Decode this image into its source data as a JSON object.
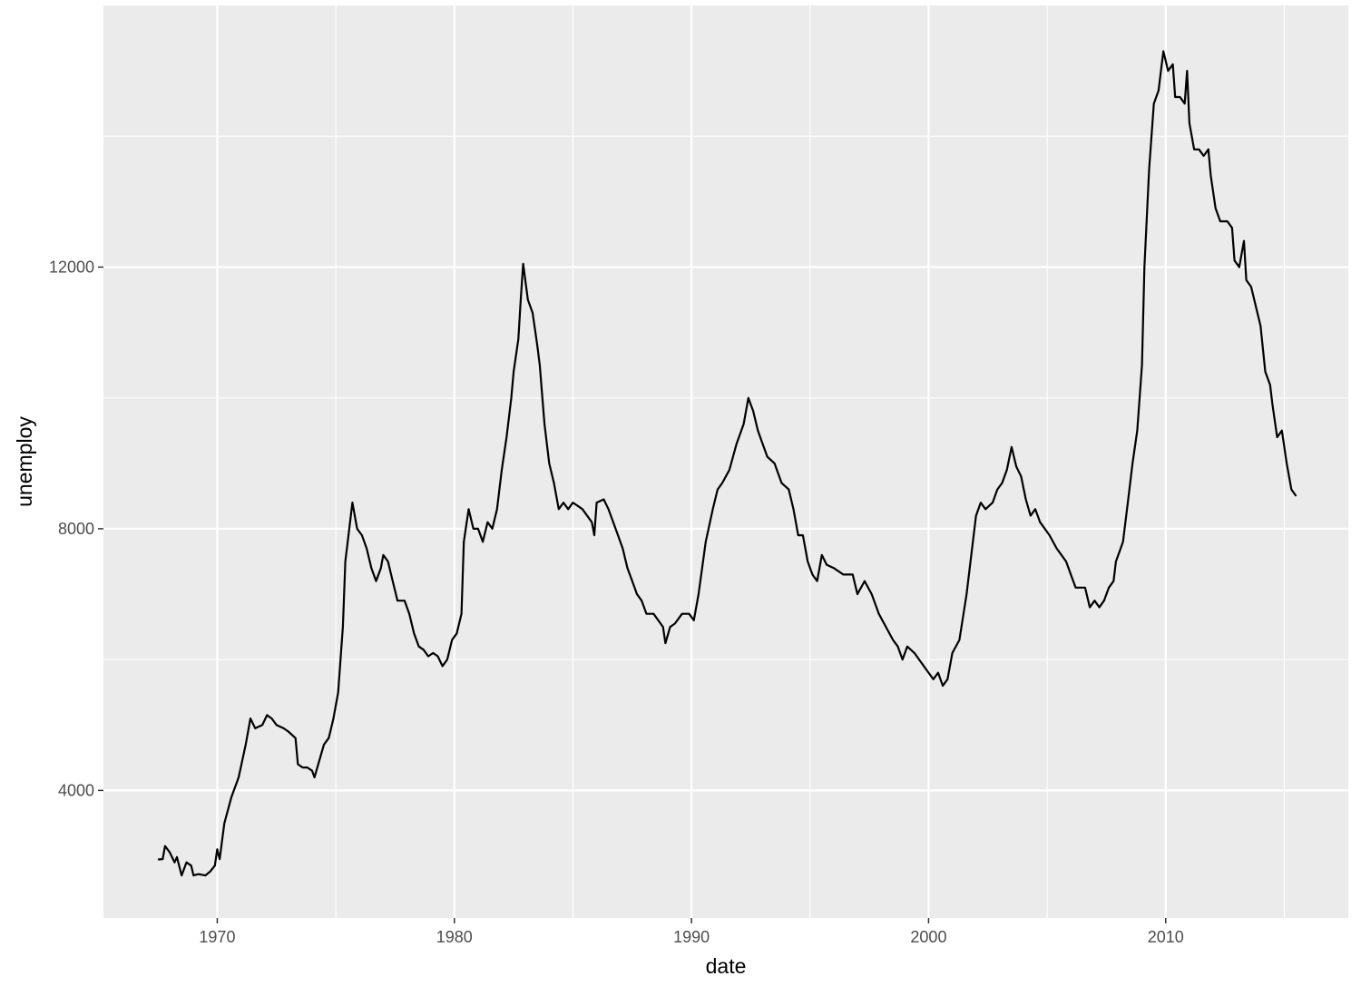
{
  "chart_data": {
    "type": "line",
    "xlabel": "date",
    "ylabel": "unemploy",
    "x_ticks": [
      "1970",
      "1980",
      "1990",
      "2000",
      "2010"
    ],
    "y_ticks": [
      "4000",
      "8000",
      "12000"
    ],
    "xlim": [
      1965.2,
      2017.7
    ],
    "ylim": [
      2050,
      16000
    ],
    "grid": true,
    "legend": "none",
    "colors": {
      "panel": "#ebebeb",
      "grid": "#ffffff",
      "line": "#000000"
    },
    "series": [
      {
        "values": [
          [
            1967.5,
            2944
          ],
          [
            1967.7,
            2950
          ],
          [
            1967.8,
            3150
          ],
          [
            1968.0,
            3050
          ],
          [
            1968.2,
            2900
          ],
          [
            1968.3,
            2980
          ],
          [
            1968.5,
            2700
          ],
          [
            1968.7,
            2900
          ],
          [
            1968.9,
            2850
          ],
          [
            1969.0,
            2700
          ],
          [
            1969.2,
            2720
          ],
          [
            1969.5,
            2700
          ],
          [
            1969.7,
            2760
          ],
          [
            1969.9,
            2850
          ],
          [
            1970.0,
            3100
          ],
          [
            1970.1,
            2950
          ],
          [
            1970.3,
            3500
          ],
          [
            1970.6,
            3900
          ],
          [
            1970.9,
            4200
          ],
          [
            1971.2,
            4700
          ],
          [
            1971.4,
            5100
          ],
          [
            1971.6,
            4950
          ],
          [
            1971.9,
            5000
          ],
          [
            1972.1,
            5150
          ],
          [
            1972.3,
            5100
          ],
          [
            1972.5,
            5000
          ],
          [
            1972.8,
            4950
          ],
          [
            1973.0,
            4900
          ],
          [
            1973.3,
            4800
          ],
          [
            1973.4,
            4400
          ],
          [
            1973.6,
            4350
          ],
          [
            1973.8,
            4350
          ],
          [
            1974.0,
            4300
          ],
          [
            1974.1,
            4200
          ],
          [
            1974.3,
            4450
          ],
          [
            1974.5,
            4700
          ],
          [
            1974.7,
            4800
          ],
          [
            1974.9,
            5100
          ],
          [
            1975.1,
            5500
          ],
          [
            1975.3,
            6500
          ],
          [
            1975.4,
            7500
          ],
          [
            1975.6,
            8100
          ],
          [
            1975.7,
            8400
          ],
          [
            1975.9,
            8000
          ],
          [
            1976.1,
            7900
          ],
          [
            1976.3,
            7700
          ],
          [
            1976.5,
            7400
          ],
          [
            1976.7,
            7200
          ],
          [
            1976.9,
            7400
          ],
          [
            1977.0,
            7600
          ],
          [
            1977.2,
            7500
          ],
          [
            1977.4,
            7200
          ],
          [
            1977.6,
            6900
          ],
          [
            1977.9,
            6900
          ],
          [
            1978.1,
            6700
          ],
          [
            1978.3,
            6400
          ],
          [
            1978.5,
            6200
          ],
          [
            1978.7,
            6150
          ],
          [
            1978.9,
            6050
          ],
          [
            1979.1,
            6100
          ],
          [
            1979.3,
            6050
          ],
          [
            1979.5,
            5900
          ],
          [
            1979.7,
            6000
          ],
          [
            1979.9,
            6300
          ],
          [
            1980.1,
            6400
          ],
          [
            1980.3,
            6700
          ],
          [
            1980.4,
            7800
          ],
          [
            1980.6,
            8300
          ],
          [
            1980.8,
            8000
          ],
          [
            1981.0,
            8000
          ],
          [
            1981.2,
            7800
          ],
          [
            1981.4,
            8100
          ],
          [
            1981.6,
            8000
          ],
          [
            1981.8,
            8300
          ],
          [
            1982.0,
            8900
          ],
          [
            1982.2,
            9400
          ],
          [
            1982.4,
            10000
          ],
          [
            1982.5,
            10400
          ],
          [
            1982.7,
            10900
          ],
          [
            1982.8,
            11500
          ],
          [
            1982.9,
            12050
          ],
          [
            1983.1,
            11500
          ],
          [
            1983.3,
            11300
          ],
          [
            1983.5,
            10800
          ],
          [
            1983.6,
            10500
          ],
          [
            1983.8,
            9600
          ],
          [
            1984.0,
            9000
          ],
          [
            1984.2,
            8700
          ],
          [
            1984.4,
            8300
          ],
          [
            1984.6,
            8400
          ],
          [
            1984.8,
            8300
          ],
          [
            1985.0,
            8400
          ],
          [
            1985.2,
            8350
          ],
          [
            1985.4,
            8300
          ],
          [
            1985.6,
            8200
          ],
          [
            1985.8,
            8100
          ],
          [
            1985.9,
            7900
          ],
          [
            1986.0,
            8400
          ],
          [
            1986.3,
            8450
          ],
          [
            1986.5,
            8300
          ],
          [
            1986.7,
            8100
          ],
          [
            1986.9,
            7900
          ],
          [
            1987.1,
            7700
          ],
          [
            1987.3,
            7400
          ],
          [
            1987.5,
            7200
          ],
          [
            1987.7,
            7000
          ],
          [
            1987.9,
            6900
          ],
          [
            1988.1,
            6700
          ],
          [
            1988.4,
            6700
          ],
          [
            1988.6,
            6600
          ],
          [
            1988.8,
            6500
          ],
          [
            1988.9,
            6250
          ],
          [
            1989.1,
            6500
          ],
          [
            1989.3,
            6550
          ],
          [
            1989.6,
            6700
          ],
          [
            1989.9,
            6700
          ],
          [
            1990.1,
            6600
          ],
          [
            1990.3,
            7000
          ],
          [
            1990.6,
            7800
          ],
          [
            1990.9,
            8300
          ],
          [
            1991.1,
            8600
          ],
          [
            1991.3,
            8700
          ],
          [
            1991.6,
            8900
          ],
          [
            1991.9,
            9300
          ],
          [
            1992.2,
            9600
          ],
          [
            1992.4,
            10000
          ],
          [
            1992.6,
            9800
          ],
          [
            1992.8,
            9500
          ],
          [
            1993.0,
            9300
          ],
          [
            1993.2,
            9100
          ],
          [
            1993.5,
            9000
          ],
          [
            1993.8,
            8700
          ],
          [
            1994.1,
            8600
          ],
          [
            1994.3,
            8300
          ],
          [
            1994.5,
            7900
          ],
          [
            1994.7,
            7900
          ],
          [
            1994.9,
            7500
          ],
          [
            1995.1,
            7300
          ],
          [
            1995.3,
            7200
          ],
          [
            1995.5,
            7600
          ],
          [
            1995.7,
            7450
          ],
          [
            1996.0,
            7400
          ],
          [
            1996.4,
            7300
          ],
          [
            1996.8,
            7300
          ],
          [
            1997.0,
            7000
          ],
          [
            1997.3,
            7200
          ],
          [
            1997.6,
            7000
          ],
          [
            1997.9,
            6700
          ],
          [
            1998.2,
            6500
          ],
          [
            1998.5,
            6300
          ],
          [
            1998.7,
            6200
          ],
          [
            1998.9,
            6000
          ],
          [
            1999.1,
            6200
          ],
          [
            1999.4,
            6100
          ],
          [
            1999.6,
            6000
          ],
          [
            1999.8,
            5900
          ],
          [
            2000.0,
            5800
          ],
          [
            2000.2,
            5700
          ],
          [
            2000.4,
            5800
          ],
          [
            2000.6,
            5600
          ],
          [
            2000.8,
            5700
          ],
          [
            2001.0,
            6100
          ],
          [
            2001.3,
            6300
          ],
          [
            2001.6,
            7000
          ],
          [
            2001.9,
            7900
          ],
          [
            2002.0,
            8200
          ],
          [
            2002.2,
            8400
          ],
          [
            2002.4,
            8300
          ],
          [
            2002.7,
            8400
          ],
          [
            2002.9,
            8600
          ],
          [
            2003.1,
            8700
          ],
          [
            2003.3,
            8900
          ],
          [
            2003.5,
            9250
          ],
          [
            2003.7,
            8950
          ],
          [
            2003.9,
            8800
          ],
          [
            2004.1,
            8450
          ],
          [
            2004.3,
            8200
          ],
          [
            2004.5,
            8300
          ],
          [
            2004.7,
            8100
          ],
          [
            2004.9,
            8000
          ],
          [
            2005.1,
            7900
          ],
          [
            2005.4,
            7700
          ],
          [
            2005.6,
            7600
          ],
          [
            2005.8,
            7500
          ],
          [
            2006.0,
            7300
          ],
          [
            2006.2,
            7100
          ],
          [
            2006.4,
            7100
          ],
          [
            2006.6,
            7100
          ],
          [
            2006.8,
            6800
          ],
          [
            2007.0,
            6900
          ],
          [
            2007.2,
            6800
          ],
          [
            2007.4,
            6900
          ],
          [
            2007.6,
            7100
          ],
          [
            2007.8,
            7200
          ],
          [
            2007.9,
            7500
          ],
          [
            2008.1,
            7700
          ],
          [
            2008.2,
            7800
          ],
          [
            2008.4,
            8400
          ],
          [
            2008.6,
            9000
          ],
          [
            2008.8,
            9500
          ],
          [
            2009.0,
            10500
          ],
          [
            2009.1,
            12000
          ],
          [
            2009.3,
            13500
          ],
          [
            2009.5,
            14500
          ],
          [
            2009.7,
            14700
          ],
          [
            2009.8,
            15000
          ],
          [
            2009.9,
            15300
          ],
          [
            2010.1,
            15000
          ],
          [
            2010.3,
            15100
          ],
          [
            2010.4,
            14600
          ],
          [
            2010.6,
            14600
          ],
          [
            2010.8,
            14500
          ],
          [
            2010.9,
            15000
          ],
          [
            2011.0,
            14200
          ],
          [
            2011.2,
            13800
          ],
          [
            2011.4,
            13800
          ],
          [
            2011.6,
            13700
          ],
          [
            2011.8,
            13800
          ],
          [
            2011.9,
            13400
          ],
          [
            2012.1,
            12900
          ],
          [
            2012.3,
            12700
          ],
          [
            2012.6,
            12700
          ],
          [
            2012.8,
            12600
          ],
          [
            2012.9,
            12100
          ],
          [
            2013.1,
            12000
          ],
          [
            2013.3,
            12400
          ],
          [
            2013.4,
            11800
          ],
          [
            2013.6,
            11700
          ],
          [
            2013.8,
            11400
          ],
          [
            2014.0,
            11100
          ],
          [
            2014.2,
            10400
          ],
          [
            2014.4,
            10200
          ],
          [
            2014.5,
            9900
          ],
          [
            2014.7,
            9400
          ],
          [
            2014.9,
            9500
          ],
          [
            2015.1,
            9000
          ],
          [
            2015.2,
            8800
          ],
          [
            2015.3,
            8600
          ],
          [
            2015.5,
            8500
          ]
        ]
      }
    ]
  }
}
